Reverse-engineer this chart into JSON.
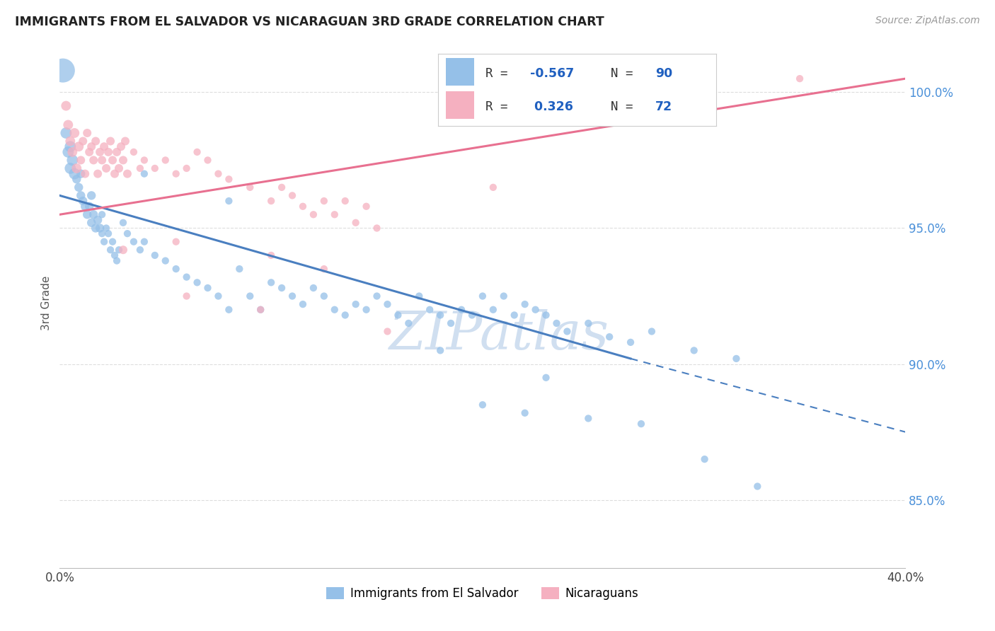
{
  "title": "IMMIGRANTS FROM EL SALVADOR VS NICARAGUAN 3RD GRADE CORRELATION CHART",
  "source": "Source: ZipAtlas.com",
  "ylabel": "3rd Grade",
  "y_ticks": [
    85.0,
    90.0,
    95.0,
    100.0
  ],
  "y_tick_labels": [
    "85.0%",
    "90.0%",
    "95.0%",
    "100.0%"
  ],
  "x_min": 0.0,
  "x_max": 40.0,
  "y_min": 82.5,
  "y_max": 102.0,
  "color_blue": "#95C0E8",
  "color_blue_line": "#4A7FC0",
  "color_pink": "#F5B0C0",
  "color_pink_line": "#E87090",
  "color_r_value": "#2060C0",
  "color_grid": "#DDDDDD",
  "watermark_color": "#D0DFF0",
  "blue_scatter": [
    [
      0.15,
      100.8
    ],
    [
      0.3,
      98.5
    ],
    [
      0.4,
      97.8
    ],
    [
      0.5,
      97.2
    ],
    [
      0.5,
      98.0
    ],
    [
      0.6,
      97.5
    ],
    [
      0.7,
      97.0
    ],
    [
      0.8,
      96.8
    ],
    [
      0.9,
      96.5
    ],
    [
      1.0,
      96.2
    ],
    [
      1.0,
      97.0
    ],
    [
      1.1,
      96.0
    ],
    [
      1.2,
      95.8
    ],
    [
      1.3,
      95.5
    ],
    [
      1.4,
      95.8
    ],
    [
      1.5,
      95.2
    ],
    [
      1.5,
      96.2
    ],
    [
      1.6,
      95.5
    ],
    [
      1.7,
      95.0
    ],
    [
      1.8,
      95.3
    ],
    [
      1.9,
      95.0
    ],
    [
      2.0,
      94.8
    ],
    [
      2.0,
      95.5
    ],
    [
      2.1,
      94.5
    ],
    [
      2.2,
      95.0
    ],
    [
      2.3,
      94.8
    ],
    [
      2.4,
      94.2
    ],
    [
      2.5,
      94.5
    ],
    [
      2.6,
      94.0
    ],
    [
      2.7,
      93.8
    ],
    [
      2.8,
      94.2
    ],
    [
      3.0,
      95.2
    ],
    [
      3.2,
      94.8
    ],
    [
      3.5,
      94.5
    ],
    [
      3.8,
      94.2
    ],
    [
      4.0,
      94.5
    ],
    [
      4.5,
      94.0
    ],
    [
      5.0,
      93.8
    ],
    [
      5.5,
      93.5
    ],
    [
      6.0,
      93.2
    ],
    [
      6.5,
      93.0
    ],
    [
      7.0,
      92.8
    ],
    [
      7.5,
      92.5
    ],
    [
      8.0,
      92.0
    ],
    [
      8.5,
      93.5
    ],
    [
      9.0,
      92.5
    ],
    [
      9.5,
      92.0
    ],
    [
      10.0,
      93.0
    ],
    [
      10.5,
      92.8
    ],
    [
      11.0,
      92.5
    ],
    [
      11.5,
      92.2
    ],
    [
      12.0,
      92.8
    ],
    [
      12.5,
      92.5
    ],
    [
      13.0,
      92.0
    ],
    [
      13.5,
      91.8
    ],
    [
      14.0,
      92.2
    ],
    [
      14.5,
      92.0
    ],
    [
      15.0,
      92.5
    ],
    [
      15.5,
      92.2
    ],
    [
      16.0,
      91.8
    ],
    [
      16.5,
      91.5
    ],
    [
      17.0,
      92.5
    ],
    [
      17.5,
      92.0
    ],
    [
      18.0,
      91.8
    ],
    [
      18.5,
      91.5
    ],
    [
      19.0,
      92.0
    ],
    [
      19.5,
      91.8
    ],
    [
      20.0,
      92.5
    ],
    [
      20.5,
      92.0
    ],
    [
      21.0,
      92.5
    ],
    [
      21.5,
      91.8
    ],
    [
      22.0,
      92.2
    ],
    [
      22.5,
      92.0
    ],
    [
      23.0,
      91.8
    ],
    [
      23.5,
      91.5
    ],
    [
      24.0,
      91.2
    ],
    [
      25.0,
      91.5
    ],
    [
      26.0,
      91.0
    ],
    [
      27.0,
      90.8
    ],
    [
      28.0,
      91.2
    ],
    [
      30.0,
      90.5
    ],
    [
      32.0,
      90.2
    ],
    [
      20.0,
      88.5
    ],
    [
      22.0,
      88.2
    ],
    [
      25.0,
      88.0
    ],
    [
      27.5,
      87.8
    ],
    [
      30.5,
      86.5
    ],
    [
      33.0,
      85.5
    ],
    [
      8.0,
      96.0
    ],
    [
      4.0,
      97.0
    ],
    [
      18.0,
      90.5
    ],
    [
      23.0,
      89.5
    ]
  ],
  "pink_scatter": [
    [
      0.3,
      99.5
    ],
    [
      0.4,
      98.8
    ],
    [
      0.5,
      98.2
    ],
    [
      0.6,
      97.8
    ],
    [
      0.7,
      98.5
    ],
    [
      0.8,
      97.2
    ],
    [
      0.9,
      98.0
    ],
    [
      1.0,
      97.5
    ],
    [
      1.1,
      98.2
    ],
    [
      1.2,
      97.0
    ],
    [
      1.3,
      98.5
    ],
    [
      1.4,
      97.8
    ],
    [
      1.5,
      98.0
    ],
    [
      1.6,
      97.5
    ],
    [
      1.7,
      98.2
    ],
    [
      1.8,
      97.0
    ],
    [
      1.9,
      97.8
    ],
    [
      2.0,
      97.5
    ],
    [
      2.1,
      98.0
    ],
    [
      2.2,
      97.2
    ],
    [
      2.3,
      97.8
    ],
    [
      2.4,
      98.2
    ],
    [
      2.5,
      97.5
    ],
    [
      2.6,
      97.0
    ],
    [
      2.7,
      97.8
    ],
    [
      2.8,
      97.2
    ],
    [
      2.9,
      98.0
    ],
    [
      3.0,
      97.5
    ],
    [
      3.1,
      98.2
    ],
    [
      3.2,
      97.0
    ],
    [
      3.5,
      97.8
    ],
    [
      3.8,
      97.2
    ],
    [
      4.0,
      97.5
    ],
    [
      4.5,
      97.2
    ],
    [
      5.0,
      97.5
    ],
    [
      5.5,
      97.0
    ],
    [
      6.0,
      97.2
    ],
    [
      6.5,
      97.8
    ],
    [
      7.0,
      97.5
    ],
    [
      7.5,
      97.0
    ],
    [
      8.0,
      96.8
    ],
    [
      9.0,
      96.5
    ],
    [
      10.0,
      96.0
    ],
    [
      10.5,
      96.5
    ],
    [
      11.0,
      96.2
    ],
    [
      11.5,
      95.8
    ],
    [
      12.0,
      95.5
    ],
    [
      12.5,
      96.0
    ],
    [
      13.0,
      95.5
    ],
    [
      13.5,
      96.0
    ],
    [
      14.0,
      95.2
    ],
    [
      14.5,
      95.8
    ],
    [
      15.0,
      95.0
    ],
    [
      3.0,
      94.2
    ],
    [
      5.5,
      94.5
    ],
    [
      10.0,
      94.0
    ],
    [
      12.5,
      93.5
    ],
    [
      6.0,
      92.5
    ],
    [
      9.5,
      92.0
    ],
    [
      15.5,
      91.2
    ],
    [
      20.5,
      96.5
    ],
    [
      35.0,
      100.5
    ]
  ]
}
